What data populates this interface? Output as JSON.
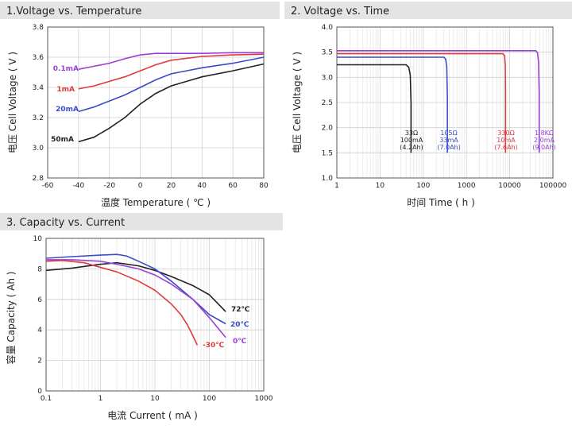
{
  "chart_data": [
    {
      "type": "line",
      "title": "1.Voltage vs. Temperature",
      "xlabel": "温度 Temperature ( ℃ )",
      "ylabel": "电压  Cell Voltage ( V )",
      "xlim": [
        -60,
        80
      ],
      "ylim": [
        2.8,
        3.8
      ],
      "xticks": [
        "-60",
        "-40",
        "-20",
        "0",
        "20",
        "40",
        "60",
        "80"
      ],
      "yticks": [
        "2.8",
        "3.0",
        "3.2",
        "3.4",
        "3.6",
        "3.8"
      ],
      "grid": true,
      "series": [
        {
          "name": "0.1mA",
          "color": "#9b3fd6",
          "x": [
            -40,
            -30,
            -20,
            -10,
            0,
            10,
            20,
            40,
            60,
            80
          ],
          "y": [
            3.52,
            3.54,
            3.56,
            3.59,
            3.615,
            3.625,
            3.625,
            3.625,
            3.63,
            3.63
          ]
        },
        {
          "name": "1mA",
          "color": "#e03a3a",
          "x": [
            -40,
            -30,
            -20,
            -10,
            0,
            10,
            20,
            40,
            60,
            80
          ],
          "y": [
            3.39,
            3.41,
            3.44,
            3.47,
            3.51,
            3.55,
            3.58,
            3.605,
            3.615,
            3.62
          ]
        },
        {
          "name": "20mA",
          "color": "#3a4bc8",
          "x": [
            -40,
            -30,
            -20,
            -10,
            0,
            10,
            20,
            30,
            40,
            60,
            80
          ],
          "y": [
            3.24,
            3.27,
            3.31,
            3.35,
            3.4,
            3.45,
            3.49,
            3.51,
            3.53,
            3.56,
            3.6
          ]
        },
        {
          "name": "50mA",
          "color": "#222222",
          "x": [
            -40,
            -30,
            -20,
            -10,
            0,
            10,
            20,
            30,
            40,
            60,
            80
          ],
          "y": [
            3.04,
            3.07,
            3.13,
            3.2,
            3.29,
            3.36,
            3.41,
            3.44,
            3.47,
            3.51,
            3.555
          ]
        }
      ]
    },
    {
      "type": "line",
      "title": "2. Voltage vs. Time",
      "xlabel": "时间 Time ( h )",
      "ylabel": "电压  Cell Voltage ( V )",
      "xscale": "log",
      "xlim": [
        1,
        100000
      ],
      "ylim": [
        1.0,
        4.0
      ],
      "xticks": [
        "1",
        "10",
        "100",
        "1000",
        "10000",
        "100000"
      ],
      "yticks": [
        "1.0",
        "1.5",
        "2.0",
        "2.5",
        "3.0",
        "3.5",
        "4.0"
      ],
      "grid": true,
      "series": [
        {
          "name": "",
          "color": "#222222",
          "label_lines": [
            "33Ω",
            "100mA",
            "(4.2Ah)"
          ],
          "x": [
            1,
            40,
            46,
            50,
            52,
            52
          ],
          "y": [
            3.25,
            3.25,
            3.2,
            3.05,
            2.5,
            1.5
          ]
        },
        {
          "name": "",
          "color": "#3a4bc8",
          "label_lines": [
            "105Ω",
            "33mA",
            "(7.0Ah)"
          ],
          "x": [
            1,
            300,
            330,
            350,
            360,
            360
          ],
          "y": [
            3.4,
            3.4,
            3.36,
            3.2,
            2.6,
            1.5
          ]
        },
        {
          "name": "",
          "color": "#e03a3a",
          "label_lines": [
            "330Ω",
            "10mA",
            "(7.6Ah)"
          ],
          "x": [
            1,
            7000,
            7600,
            7900,
            8000,
            8000
          ],
          "y": [
            3.47,
            3.47,
            3.43,
            3.25,
            2.7,
            1.5
          ]
        },
        {
          "name": "",
          "color": "#9b3fd6",
          "label_lines": [
            "1.8KΩ",
            "2.0mA",
            "(9.0Ah)"
          ],
          "x": [
            1,
            40000,
            44000,
            46500,
            48000,
            48000
          ],
          "y": [
            3.53,
            3.53,
            3.49,
            3.3,
            2.7,
            1.5
          ]
        }
      ]
    },
    {
      "type": "line",
      "title": "3.   Capacity vs. Current",
      "xlabel": "电流  Current ( mA )",
      "ylabel": "容量  Capacity ( Ah )",
      "xscale": "log",
      "xlim": [
        0.1,
        1000
      ],
      "ylim": [
        0,
        10
      ],
      "xticks": [
        "0.1",
        "1",
        "10",
        "100",
        "1000"
      ],
      "yticks": [
        "0",
        "2",
        "4",
        "6",
        "8",
        "10"
      ],
      "grid": true,
      "series": [
        {
          "name": "72℃",
          "color": "#222222",
          "x": [
            0.1,
            0.3,
            1,
            2,
            5,
            10,
            20,
            50,
            100,
            200
          ],
          "y": [
            7.9,
            8.05,
            8.3,
            8.4,
            8.2,
            7.9,
            7.5,
            6.9,
            6.3,
            5.2
          ]
        },
        {
          "name": "20℃",
          "color": "#3a4bc8",
          "x": [
            0.1,
            0.3,
            1,
            2,
            3,
            5,
            10,
            20,
            50,
            100,
            200
          ],
          "y": [
            8.7,
            8.8,
            8.9,
            8.95,
            8.85,
            8.5,
            8.0,
            7.2,
            6.0,
            5.0,
            4.4
          ]
        },
        {
          "name": "0℃",
          "color": "#9b3fd6",
          "x": [
            0.1,
            0.3,
            1,
            2,
            5,
            10,
            20,
            50,
            100,
            200
          ],
          "y": [
            8.6,
            8.6,
            8.5,
            8.3,
            8.0,
            7.6,
            7.0,
            6.0,
            4.8,
            3.5
          ]
        },
        {
          "name": "-30℃",
          "color": "#e03a3a",
          "x": [
            0.1,
            0.2,
            0.5,
            1,
            2,
            5,
            10,
            20,
            30,
            40,
            50,
            60
          ],
          "y": [
            8.5,
            8.55,
            8.4,
            8.1,
            7.8,
            7.2,
            6.6,
            5.7,
            5.0,
            4.3,
            3.6,
            3.0
          ]
        }
      ]
    }
  ]
}
